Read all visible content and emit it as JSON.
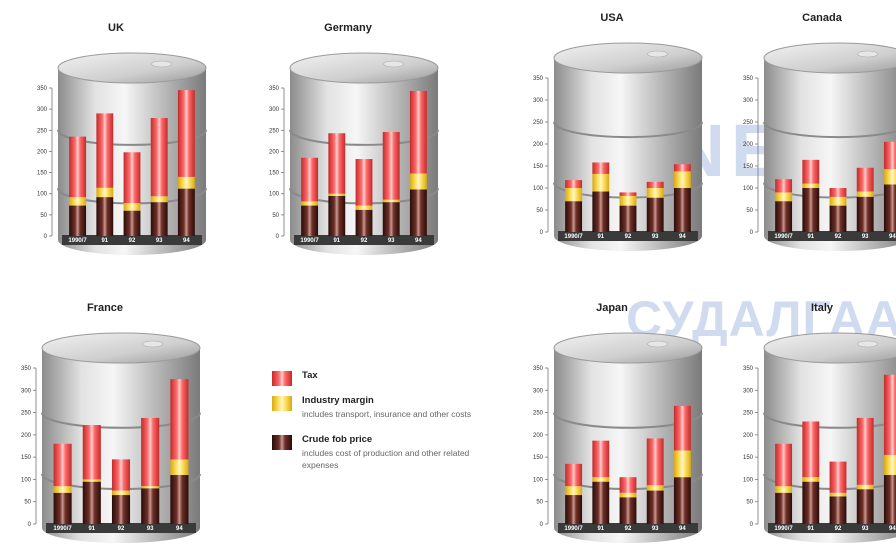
{
  "watermark": {
    "line1": "UNEN",
    "line2": "СУДАЛГААНЫ"
  },
  "legend": [
    {
      "key": "tax",
      "title": "Tax",
      "desc": "",
      "color": "#e84848"
    },
    {
      "key": "margin",
      "title": "Industry margin",
      "desc": "includes transport, insurance and other costs",
      "color": "#f0cc2c"
    },
    {
      "key": "crude",
      "title": "Crude fob price",
      "desc": "includes cost of production and other related expenses",
      "color": "#4a1d18"
    }
  ],
  "chart_data": [
    {
      "type": "bar",
      "title": "UK",
      "categories": [
        "1990/7",
        "91",
        "92",
        "93",
        "94"
      ],
      "y_ticks": [
        0,
        50,
        100,
        150,
        200,
        250,
        300,
        350
      ],
      "ylim": [
        0,
        350
      ],
      "series": [
        {
          "name": "Crude fob price",
          "values": [
            72,
            92,
            60,
            80,
            112
          ]
        },
        {
          "name": "Industry margin",
          "values": [
            20,
            22,
            18,
            14,
            28
          ]
        },
        {
          "name": "Tax",
          "values": [
            143,
            176,
            120,
            185,
            205
          ]
        }
      ]
    },
    {
      "type": "bar",
      "title": "Germany",
      "categories": [
        "1990/7",
        "91",
        "92",
        "93",
        "94"
      ],
      "y_ticks": [
        0,
        50,
        100,
        150,
        200,
        250,
        300,
        350
      ],
      "ylim": [
        0,
        350
      ],
      "series": [
        {
          "name": "Crude fob price",
          "values": [
            72,
            95,
            62,
            80,
            110
          ]
        },
        {
          "name": "Industry margin",
          "values": [
            10,
            5,
            10,
            6,
            38
          ]
        },
        {
          "name": "Tax",
          "values": [
            103,
            143,
            110,
            160,
            195
          ]
        }
      ]
    },
    {
      "type": "bar",
      "title": "USA",
      "categories": [
        "1990/7",
        "91",
        "92",
        "93",
        "94"
      ],
      "y_ticks": [
        0,
        50,
        100,
        150,
        200,
        250,
        300,
        350
      ],
      "ylim": [
        0,
        350
      ],
      "series": [
        {
          "name": "Crude fob price",
          "values": [
            70,
            92,
            60,
            78,
            100
          ]
        },
        {
          "name": "Industry margin",
          "values": [
            30,
            40,
            22,
            22,
            38
          ]
        },
        {
          "name": "Tax",
          "values": [
            18,
            26,
            8,
            14,
            16
          ]
        }
      ]
    },
    {
      "type": "bar",
      "title": "Canada",
      "categories": [
        "1990/7",
        "91",
        "92",
        "93",
        "94"
      ],
      "y_ticks": [
        0,
        50,
        100,
        150,
        200,
        250,
        300,
        350
      ],
      "ylim": [
        0,
        350
      ],
      "series": [
        {
          "name": "Crude fob price",
          "values": [
            70,
            100,
            60,
            80,
            108
          ]
        },
        {
          "name": "Industry margin",
          "values": [
            20,
            10,
            20,
            12,
            35
          ]
        },
        {
          "name": "Tax",
          "values": [
            30,
            54,
            20,
            54,
            62
          ]
        }
      ]
    },
    {
      "type": "bar",
      "title": "France",
      "categories": [
        "1990/7",
        "91",
        "92",
        "93",
        "94"
      ],
      "y_ticks": [
        0,
        50,
        100,
        150,
        200,
        250,
        300,
        350
      ],
      "ylim": [
        0,
        350
      ],
      "series": [
        {
          "name": "Crude fob price",
          "values": [
            70,
            95,
            65,
            80,
            110
          ]
        },
        {
          "name": "Industry margin",
          "values": [
            15,
            5,
            10,
            5,
            35
          ]
        },
        {
          "name": "Tax",
          "values": [
            95,
            122,
            70,
            153,
            180
          ]
        }
      ]
    },
    {
      "type": "bar",
      "title": "Japan",
      "categories": [
        "1990/7",
        "91",
        "92",
        "93",
        "94"
      ],
      "y_ticks": [
        0,
        50,
        100,
        150,
        200,
        250,
        300,
        350
      ],
      "ylim": [
        0,
        350
      ],
      "series": [
        {
          "name": "Crude fob price",
          "values": [
            65,
            95,
            60,
            75,
            105
          ]
        },
        {
          "name": "Industry margin",
          "values": [
            20,
            10,
            10,
            12,
            60
          ]
        },
        {
          "name": "Tax",
          "values": [
            50,
            82,
            35,
            105,
            100
          ]
        }
      ]
    },
    {
      "type": "bar",
      "title": "Italy",
      "categories": [
        "1990/7",
        "91",
        "92",
        "93",
        "94"
      ],
      "y_ticks": [
        0,
        50,
        100,
        150,
        200,
        250,
        300,
        350
      ],
      "ylim": [
        0,
        350
      ],
      "series": [
        {
          "name": "Crude fob price",
          "values": [
            70,
            95,
            62,
            78,
            110
          ]
        },
        {
          "name": "Industry margin",
          "values": [
            15,
            10,
            8,
            10,
            45
          ]
        },
        {
          "name": "Tax",
          "values": [
            95,
            125,
            70,
            150,
            180
          ]
        }
      ]
    }
  ]
}
